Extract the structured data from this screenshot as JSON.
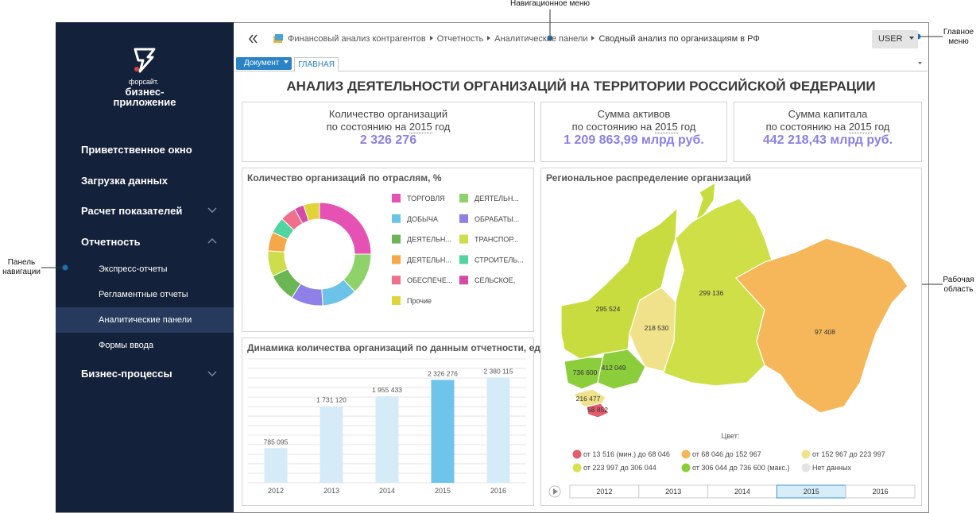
{
  "callouts": {
    "nav_menu": "Навигационное меню",
    "main_menu": [
      "Главное",
      "меню"
    ],
    "nav_panel": [
      "Панель",
      "навигации"
    ],
    "work_area": [
      "Рабочая",
      "область"
    ]
  },
  "sidebar": {
    "logo": [
      "форсайт.",
      "бизнес-",
      "приложение"
    ],
    "items": [
      "Приветственное окно",
      "Загрузка данных",
      "Расчет показателей",
      "Отчетность",
      "Бизнес-процессы"
    ],
    "subitems": [
      "Экспресс-отчеты",
      "Регламентные отчеты",
      "Аналитические панели",
      "Формы ввода"
    ]
  },
  "breadcrumb": [
    "Финансовый анализ контрагентов",
    "Отчетность",
    "Аналитические панели",
    "Сводный анализ по организациям в РФ"
  ],
  "user": "USER",
  "toolbar": {
    "document": "Документ",
    "tab": "ГЛАВНАЯ"
  },
  "dashboard": {
    "title": "АНАЛИЗ ДЕЯТЕЛЬНОСТИ ОРГАНИЗАЦИЙ НА ТЕРРИТОРИИ РОССИЙСКОЙ ФЕДЕРАЦИИ",
    "kpis": [
      {
        "label": "Количество организаций",
        "prefix": "по состоянию на",
        "year": "2015",
        "suffix": "год",
        "value": "2 326 276"
      },
      {
        "label": "Сумма активов",
        "prefix": "по состоянию на",
        "year": "2015",
        "suffix": "год",
        "value": "1 209 863,99 млрд руб."
      },
      {
        "label": "Сумма капитала",
        "prefix": "по состоянию на",
        "year": "2015",
        "suffix": "год",
        "value": "442 218,43 млрд руб."
      }
    ],
    "donut_chart": {
      "type": "pie",
      "title": "Количество организаций по отраслям, %",
      "categories": [
        "ТОРГОВЛЯ",
        "ДЕЯТЕЛЬН...",
        "ДОБЫЧА",
        "ОБРАБАТЫ...",
        "ДЕЯТЕЛЬН...",
        "ТРАНСПОР...",
        "ДЕЯТЕЛЬН...",
        "СТРОИТЕЛЬ...",
        "ОБЕСПЕЧЕ...",
        "СЕЛЬСКОЕ,",
        "Прочие"
      ],
      "values": [
        25,
        13,
        11,
        10,
        9,
        8,
        6,
        5,
        5,
        3,
        5
      ],
      "colors": [
        "#e552b4",
        "#8fd26a",
        "#6cc3e8",
        "#8e80e6",
        "#6ab654",
        "#cddd4c",
        "#f5a84a",
        "#52d4a0",
        "#ef6f8c",
        "#d64aa8",
        "#e0d43a"
      ]
    },
    "bar_chart": {
      "type": "bar",
      "title": "Динамика количества организаций по данным отчетности, ед.",
      "categories": [
        "2012",
        "2013",
        "2014",
        "2015",
        "2016"
      ],
      "values": [
        785095,
        1731120,
        1955433,
        2326276,
        2380115
      ],
      "value_labels": [
        "785 095",
        "1 731 120",
        "1 955 433",
        "2 326 276",
        "2 380 115"
      ],
      "colors": [
        "#d6ebf8",
        "#d6ebf8",
        "#d6ebf8",
        "#6ec4ea",
        "#d6ebf8"
      ],
      "ylim": [
        0,
        2800000
      ]
    },
    "map": {
      "title": "Региональное распределение организаций",
      "regions": [
        {
          "label": "295 524",
          "value": 295524,
          "color": "#c9dc3f"
        },
        {
          "label": "299 136",
          "value": 299136,
          "color": "#cfdf48"
        },
        {
          "label": "218 530",
          "value": 218530,
          "color": "#efe28a"
        },
        {
          "label": "97 408",
          "value": 97408,
          "color": "#f5b75a"
        },
        {
          "label": "736 600",
          "value": 736600,
          "color": "#8ccd3c"
        },
        {
          "label": "412 049",
          "value": 412049,
          "color": "#8ccd3c"
        },
        {
          "label": "216 477",
          "value": 216477,
          "color": "#efe28a"
        },
        {
          "label": "58 852",
          "value": 58852,
          "color": "#e35b6c"
        }
      ],
      "legend_title": "Цвет:",
      "legend": [
        {
          "label": "от 13 516 (мин.) до 68 046",
          "color": "#e35b6c"
        },
        {
          "label": "от 68 046 до 152 967",
          "color": "#f5b75a"
        },
        {
          "label": "от 152 967 до 223 997",
          "color": "#efe28a"
        },
        {
          "label": "от 223 997 до 306 044",
          "color": "#d6e24e"
        },
        {
          "label": "от 306 044 до 736 600 (макс.)",
          "color": "#8ccd3c"
        },
        {
          "label": "Нет данных",
          "color": "#e4e4e4"
        }
      ],
      "years": [
        "2012",
        "2013",
        "2014",
        "2015",
        "2016"
      ],
      "selected_year": "2015"
    }
  }
}
